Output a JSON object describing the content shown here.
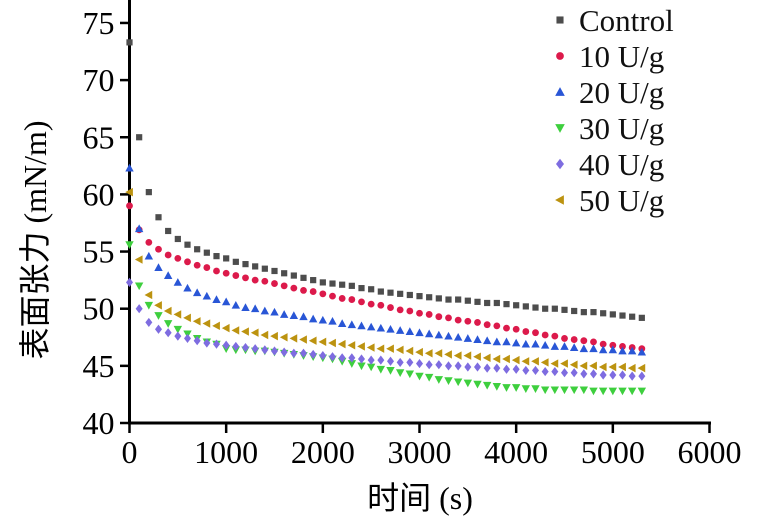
{
  "figure": {
    "background": "#ffffff",
    "axis_color": "#000000"
  },
  "chart_data": {
    "type": "scatter",
    "title": "",
    "xlabel": "时间 (s)",
    "ylabel": "表面张力 (mN/m)",
    "xlim": [
      0,
      6000
    ],
    "ylim": [
      40,
      77
    ],
    "x_ticks": [
      0,
      1000,
      2000,
      3000,
      4000,
      5000,
      6000
    ],
    "y_ticks": [
      40,
      45,
      50,
      55,
      60,
      65,
      70,
      75
    ],
    "grid": false,
    "legend_position": "top-right",
    "x": [
      0,
      100,
      200,
      300,
      400,
      500,
      600,
      700,
      800,
      900,
      1000,
      1100,
      1200,
      1300,
      1400,
      1500,
      1600,
      1700,
      1800,
      1900,
      2000,
      2100,
      2200,
      2300,
      2400,
      2500,
      2600,
      2700,
      2800,
      2900,
      3000,
      3100,
      3200,
      3300,
      3400,
      3500,
      3600,
      3700,
      3800,
      3900,
      4000,
      4100,
      4200,
      4300,
      4400,
      4500,
      4600,
      4700,
      4800,
      4900,
      5000,
      5100,
      5200,
      5300
    ],
    "series": [
      {
        "name": "Control",
        "marker": "square",
        "color": "#4d4d4d",
        "values": [
          73.3,
          65.0,
          60.2,
          58.0,
          56.8,
          56.1,
          55.6,
          55.2,
          54.9,
          54.6,
          54.4,
          54.1,
          53.9,
          53.7,
          53.5,
          53.3,
          53.1,
          52.9,
          52.7,
          52.5,
          52.3,
          52.2,
          52.1,
          52.0,
          51.8,
          51.7,
          51.5,
          51.4,
          51.3,
          51.2,
          51.1,
          51.0,
          50.9,
          50.8,
          50.8,
          50.7,
          50.6,
          50.5,
          50.5,
          50.4,
          50.3,
          50.2,
          50.1,
          50.0,
          50.0,
          49.9,
          49.8,
          49.7,
          49.7,
          49.6,
          49.5,
          49.4,
          49.3,
          49.2
        ]
      },
      {
        "name": "10 U/g",
        "marker": "circle",
        "color": "#dc1a4b",
        "values": [
          59.0,
          56.9,
          55.8,
          55.2,
          54.7,
          54.4,
          54.1,
          53.8,
          53.6,
          53.3,
          53.1,
          52.9,
          52.7,
          52.5,
          52.4,
          52.2,
          52.0,
          51.8,
          51.6,
          51.5,
          51.3,
          51.1,
          50.9,
          50.8,
          50.6,
          50.4,
          50.3,
          50.1,
          49.9,
          49.8,
          49.6,
          49.5,
          49.3,
          49.2,
          49.0,
          48.9,
          48.8,
          48.6,
          48.5,
          48.3,
          48.2,
          48.0,
          47.9,
          47.7,
          47.6,
          47.4,
          47.3,
          47.2,
          47.1,
          46.9,
          46.8,
          46.7,
          46.6,
          46.5
        ]
      },
      {
        "name": "20 U/g",
        "marker": "triangle-up",
        "color": "#2956d6",
        "values": [
          62.3,
          57.0,
          54.6,
          53.6,
          52.9,
          52.3,
          51.8,
          51.4,
          51.1,
          50.8,
          50.6,
          50.3,
          50.1,
          50.0,
          49.8,
          49.7,
          49.5,
          49.4,
          49.3,
          49.1,
          49.0,
          48.9,
          48.7,
          48.6,
          48.5,
          48.4,
          48.3,
          48.2,
          48.1,
          48.0,
          47.9,
          47.8,
          47.7,
          47.6,
          47.5,
          47.4,
          47.3,
          47.2,
          47.1,
          47.1,
          47.0,
          46.9,
          46.9,
          46.8,
          46.7,
          46.7,
          46.6,
          46.5,
          46.5,
          46.4,
          46.4,
          46.3,
          46.3,
          46.2
        ]
      },
      {
        "name": "30 U/g",
        "marker": "triangle-down",
        "color": "#3ecf3e",
        "values": [
          55.6,
          52.0,
          50.3,
          49.4,
          48.7,
          48.2,
          47.8,
          47.4,
          47.1,
          46.9,
          46.5,
          46.4,
          46.4,
          46.3,
          46.3,
          46.2,
          46.1,
          46.0,
          45.9,
          45.8,
          45.7,
          45.6,
          45.4,
          45.2,
          45.0,
          44.9,
          44.7,
          44.6,
          44.4,
          44.3,
          44.1,
          44.0,
          43.8,
          43.7,
          43.6,
          43.5,
          43.4,
          43.3,
          43.2,
          43.1,
          43.1,
          43.0,
          43.0,
          42.9,
          42.9,
          42.9,
          42.9,
          42.9,
          42.8,
          42.8,
          42.8,
          42.8,
          42.8,
          42.8
        ]
      },
      {
        "name": "40 U/g",
        "marker": "diamond",
        "color": "#7e6ce0",
        "values": [
          52.3,
          50.0,
          48.8,
          48.2,
          47.9,
          47.6,
          47.4,
          47.2,
          47.0,
          46.9,
          46.8,
          46.7,
          46.6,
          46.5,
          46.4,
          46.3,
          46.2,
          46.1,
          46.1,
          46.0,
          45.9,
          45.8,
          45.7,
          45.7,
          45.6,
          45.5,
          45.5,
          45.4,
          45.3,
          45.3,
          45.2,
          45.1,
          45.1,
          45.0,
          45.0,
          44.9,
          44.9,
          44.8,
          44.8,
          44.7,
          44.7,
          44.6,
          44.6,
          44.5,
          44.5,
          44.4,
          44.4,
          44.3,
          44.3,
          44.2,
          44.2,
          44.2,
          44.1,
          44.1
        ]
      },
      {
        "name": "50 U/g",
        "marker": "triangle-left",
        "color": "#bc9310",
        "values": [
          60.2,
          54.3,
          51.2,
          50.3,
          49.8,
          49.5,
          49.2,
          48.9,
          48.7,
          48.5,
          48.3,
          48.1,
          48.0,
          47.9,
          47.7,
          47.6,
          47.5,
          47.4,
          47.3,
          47.2,
          47.1,
          47.0,
          46.9,
          46.8,
          46.7,
          46.6,
          46.5,
          46.5,
          46.4,
          46.3,
          46.2,
          46.1,
          46.1,
          46.0,
          45.9,
          45.9,
          45.8,
          45.7,
          45.6,
          45.6,
          45.5,
          45.4,
          45.4,
          45.3,
          45.2,
          45.2,
          45.1,
          45.0,
          45.0,
          44.9,
          44.9,
          44.9,
          44.8,
          44.8
        ]
      }
    ]
  }
}
